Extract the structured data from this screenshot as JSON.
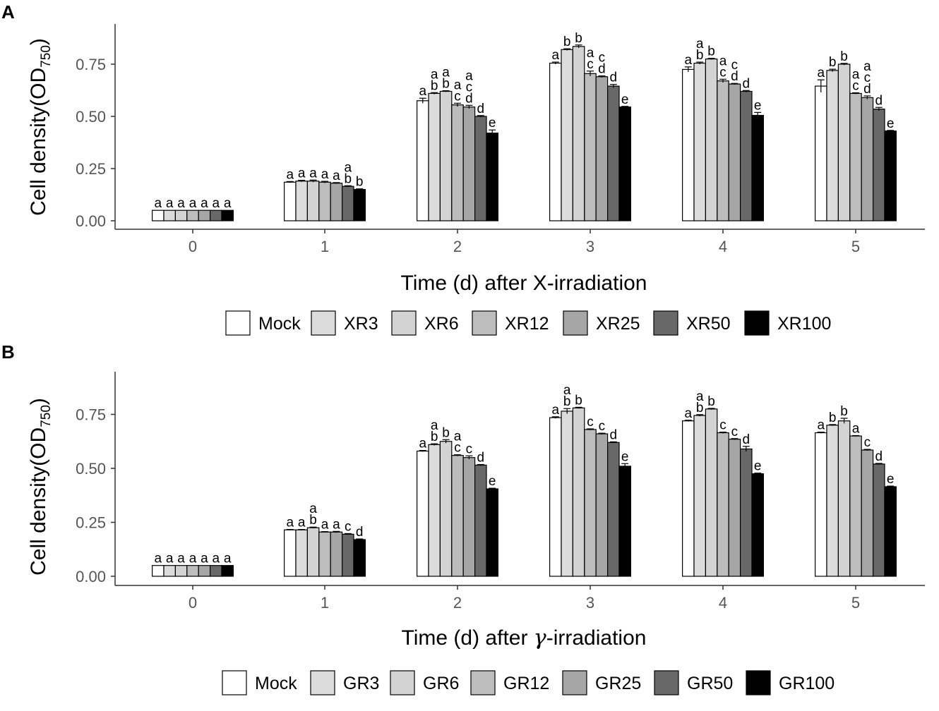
{
  "chart_data": [
    {
      "panel": "A",
      "type": "bar",
      "categories": [
        "0",
        "1",
        "2",
        "3",
        "4",
        "5"
      ],
      "xlabel": "Time (d) after X-irradiation",
      "ylabel_main": "Cell density",
      "ylabel_paren_open": "(",
      "ylabel_od": "OD",
      "ylabel_sub": "750",
      "ylabel_paren_close": ")",
      "ylim": [
        0,
        0.95
      ],
      "yticks": [
        "0.00",
        "0.25",
        "0.50",
        "0.75"
      ],
      "ytick_values": [
        0,
        0.25,
        0.5,
        0.75
      ],
      "series": [
        {
          "name": "Mock",
          "color": "#ffffff",
          "values": [
            0.05,
            0.185,
            0.575,
            0.755,
            0.725,
            0.645
          ],
          "errors": [
            0,
            0.003,
            0.012,
            0.005,
            0.012,
            0.03
          ],
          "letters": [
            [
              "a"
            ],
            [
              "a"
            ],
            [
              "a"
            ],
            [
              "a"
            ],
            [
              "a"
            ],
            [
              "a"
            ]
          ]
        },
        {
          "name": "XR3",
          "color": "#dcdcdc",
          "values": [
            0.05,
            0.19,
            0.61,
            0.82,
            0.755,
            0.72
          ],
          "errors": [
            0,
            0.004,
            0.004,
            0.004,
            0.005,
            0.006
          ],
          "letters": [
            [
              "a"
            ],
            [
              "a"
            ],
            [
              "a",
              "b"
            ],
            [
              "b"
            ],
            [
              "a",
              "b"
            ],
            [
              "b"
            ]
          ]
        },
        {
          "name": "XR6",
          "color": "#d3d3d3",
          "values": [
            0.05,
            0.19,
            0.62,
            0.835,
            0.775,
            0.75
          ],
          "errors": [
            0,
            0.005,
            0.003,
            0.007,
            0.003,
            0.004
          ],
          "letters": [
            [
              "a"
            ],
            [
              "a"
            ],
            [
              "a",
              "b"
            ],
            [
              "b"
            ],
            [
              "b"
            ],
            [
              "b"
            ]
          ]
        },
        {
          "name": "XR12",
          "color": "#bdbdbd",
          "values": [
            0.05,
            0.185,
            0.555,
            0.705,
            0.67,
            0.61
          ],
          "errors": [
            0,
            0.004,
            0.008,
            0.012,
            0.008,
            0.003
          ],
          "letters": [
            [
              "a"
            ],
            [
              "a"
            ],
            [
              "a",
              "c"
            ],
            [
              "a",
              "c"
            ],
            [
              "a",
              "c"
            ],
            [
              "a",
              "c"
            ]
          ]
        },
        {
          "name": "XR25",
          "color": "#a6a6a6",
          "values": [
            0.05,
            0.18,
            0.545,
            0.69,
            0.655,
            0.59
          ],
          "errors": [
            0,
            0.003,
            0.008,
            0.004,
            0.003,
            0.008
          ],
          "letters": [
            [
              "a"
            ],
            [
              "a"
            ],
            [
              "a",
              "c",
              "d"
            ],
            [
              "c",
              "d"
            ],
            [
              "c",
              "d"
            ],
            [
              "a",
              "c",
              "d"
            ]
          ]
        },
        {
          "name": "XR50",
          "color": "#686868",
          "values": [
            0.05,
            0.165,
            0.5,
            0.645,
            0.62,
            0.535
          ],
          "errors": [
            0,
            0.003,
            0.004,
            0.008,
            0.004,
            0.008
          ],
          "letters": [
            [
              "a"
            ],
            [
              "a",
              "b"
            ],
            [
              "d"
            ],
            [
              "d"
            ],
            [
              "d"
            ],
            [
              "d"
            ]
          ]
        },
        {
          "name": "XR100",
          "color": "#000000",
          "values": [
            0.05,
            0.15,
            0.42,
            0.545,
            0.505,
            0.43
          ],
          "errors": [
            0,
            0.003,
            0.015,
            0.003,
            0.014,
            0.003
          ],
          "letters": [
            [
              "a"
            ],
            [
              "b"
            ],
            [
              "e"
            ],
            [
              "e"
            ],
            [
              "e"
            ],
            [
              "e"
            ]
          ]
        }
      ]
    },
    {
      "panel": "B",
      "type": "bar",
      "categories": [
        "0",
        "1",
        "2",
        "3",
        "4",
        "5"
      ],
      "xlabel_pre": "Time (d) after ",
      "xlabel_symbol": "γ",
      "xlabel_post": "-irradiation",
      "ylabel_main": "Cell density",
      "ylabel_paren_open": "(",
      "ylabel_od": "OD",
      "ylabel_sub": "750",
      "ylabel_paren_close": ")",
      "ylim": [
        0,
        0.95
      ],
      "yticks": [
        "0.00",
        "0.25",
        "0.50",
        "0.75"
      ],
      "ytick_values": [
        0,
        0.25,
        0.5,
        0.75
      ],
      "series": [
        {
          "name": "Mock",
          "color": "#ffffff",
          "values": [
            0.05,
            0.215,
            0.58,
            0.735,
            0.72,
            0.665
          ],
          "errors": [
            0,
            0.002,
            0.003,
            0.004,
            0.003,
            0.003
          ],
          "letters": [
            [
              "a"
            ],
            [
              "a"
            ],
            [
              "a"
            ],
            [
              "a"
            ],
            [
              "a"
            ],
            [
              "a"
            ]
          ]
        },
        {
          "name": "GR3",
          "color": "#dcdcdc",
          "values": [
            0.05,
            0.215,
            0.61,
            0.765,
            0.745,
            0.7
          ],
          "errors": [
            0,
            0.002,
            0.004,
            0.012,
            0.004,
            0.003
          ],
          "letters": [
            [
              "a"
            ],
            [
              "a"
            ],
            [
              "a",
              "b"
            ],
            [
              "a",
              "b"
            ],
            [
              "a",
              "b"
            ],
            [
              "b"
            ]
          ]
        },
        {
          "name": "GR6",
          "color": "#d3d3d3",
          "values": [
            0.05,
            0.225,
            0.625,
            0.78,
            0.775,
            0.72
          ],
          "errors": [
            0,
            0.003,
            0.008,
            0.003,
            0.003,
            0.012
          ],
          "letters": [
            [
              "a"
            ],
            [
              "a",
              "b"
            ],
            [
              "b"
            ],
            [
              "b"
            ],
            [
              "b"
            ],
            [
              "b"
            ]
          ]
        },
        {
          "name": "GR12",
          "color": "#bdbdbd",
          "values": [
            0.05,
            0.205,
            0.56,
            0.68,
            0.665,
            0.65
          ],
          "errors": [
            0,
            0.002,
            0.003,
            0.003,
            0.003,
            0.002
          ],
          "letters": [
            [
              "a"
            ],
            [
              "a"
            ],
            [
              "a",
              "c"
            ],
            [
              "c"
            ],
            [
              "c"
            ],
            [
              "a"
            ]
          ]
        },
        {
          "name": "GR25",
          "color": "#a6a6a6",
          "values": [
            0.05,
            0.205,
            0.55,
            0.66,
            0.635,
            0.585
          ],
          "errors": [
            0,
            0.003,
            0.008,
            0.003,
            0.003,
            0.003
          ],
          "letters": [
            [
              "a"
            ],
            [
              "a"
            ],
            [
              "c"
            ],
            [
              "c"
            ],
            [
              "c"
            ],
            [
              "c"
            ]
          ]
        },
        {
          "name": "GR50",
          "color": "#686868",
          "values": [
            0.05,
            0.195,
            0.515,
            0.62,
            0.59,
            0.52
          ],
          "errors": [
            0,
            0.003,
            0.003,
            0.003,
            0.012,
            0.003
          ],
          "letters": [
            [
              "a"
            ],
            [
              "c"
            ],
            [
              "d"
            ],
            [
              "d"
            ],
            [
              "d"
            ],
            [
              "d"
            ]
          ]
        },
        {
          "name": "GR100",
          "color": "#000000",
          "values": [
            0.05,
            0.17,
            0.405,
            0.51,
            0.475,
            0.415
          ],
          "errors": [
            0,
            0.003,
            0.003,
            0.012,
            0.003,
            0.003
          ],
          "letters": [
            [
              "a"
            ],
            [
              "d"
            ],
            [
              "e"
            ],
            [
              "e"
            ],
            [
              "e"
            ],
            [
              "e"
            ]
          ]
        }
      ]
    }
  ]
}
